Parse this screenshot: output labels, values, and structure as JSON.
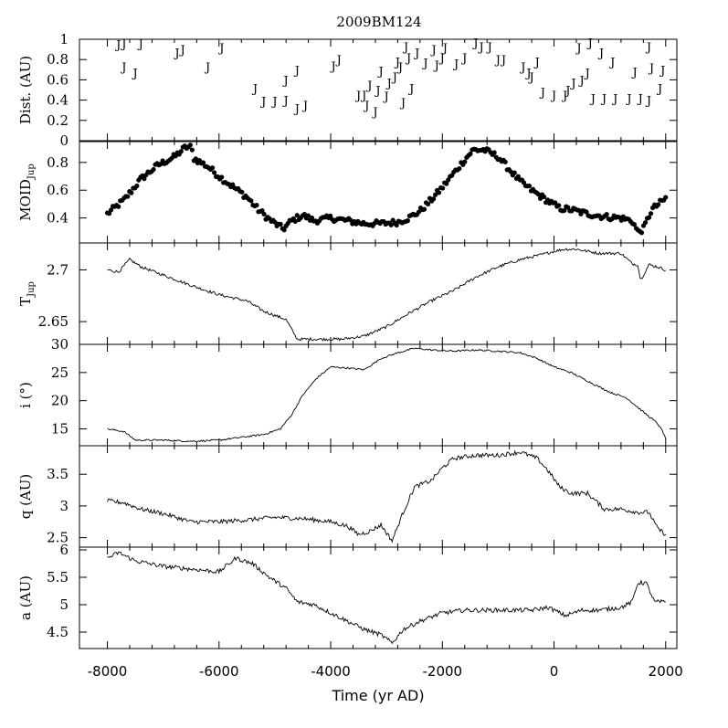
{
  "title": "2009BM124",
  "x_axis": {
    "label": "Time (yr AD)",
    "range": [
      -8500,
      2200
    ],
    "ticks": [
      "-8000",
      "-6000",
      "-4000",
      "-2000",
      "0",
      "2000"
    ]
  },
  "chart_data": [
    {
      "id": "dist",
      "type": "scatter",
      "marker": "J",
      "ylabel": "Dist. (AU)",
      "ylim": [
        0,
        1
      ],
      "yticks": [
        "0",
        "0.2",
        "0.4",
        "0.6",
        "0.8",
        "1"
      ],
      "points": [
        [
          -7800,
          0.95
        ],
        [
          -7700,
          0.96
        ],
        [
          -7700,
          0.73
        ],
        [
          -7500,
          0.67
        ],
        [
          -7400,
          0.96
        ],
        [
          -6750,
          0.87
        ],
        [
          -6650,
          0.9
        ],
        [
          -6200,
          0.73
        ],
        [
          -5950,
          0.92
        ],
        [
          -5350,
          0.52
        ],
        [
          -5200,
          0.39
        ],
        [
          -5000,
          0.39
        ],
        [
          -4800,
          0.4
        ],
        [
          -4800,
          0.6
        ],
        [
          -4600,
          0.32
        ],
        [
          -4600,
          0.7
        ],
        [
          -4450,
          0.35
        ],
        [
          -3950,
          0.74
        ],
        [
          -3850,
          0.8
        ],
        [
          -3500,
          0.45
        ],
        [
          -3400,
          0.45
        ],
        [
          -3350,
          0.35
        ],
        [
          -3300,
          0.55
        ],
        [
          -3200,
          0.29
        ],
        [
          -3150,
          0.5
        ],
        [
          -3100,
          0.69
        ],
        [
          -3000,
          0.44
        ],
        [
          -2950,
          0.57
        ],
        [
          -2850,
          0.63
        ],
        [
          -2800,
          0.78
        ],
        [
          -2750,
          0.73
        ],
        [
          -2700,
          0.38
        ],
        [
          -2650,
          0.93
        ],
        [
          -2600,
          0.82
        ],
        [
          -2550,
          0.52
        ],
        [
          -2450,
          0.87
        ],
        [
          -2300,
          0.77
        ],
        [
          -2150,
          0.9
        ],
        [
          -2100,
          0.75
        ],
        [
          -2000,
          0.82
        ],
        [
          -1950,
          0.92
        ],
        [
          -1750,
          0.76
        ],
        [
          -1600,
          0.82
        ],
        [
          -1400,
          0.97
        ],
        [
          -1300,
          0.93
        ],
        [
          -1150,
          0.93
        ],
        [
          -1000,
          0.8
        ],
        [
          -900,
          0.8
        ],
        [
          -550,
          0.73
        ],
        [
          -450,
          0.67
        ],
        [
          -400,
          0.63
        ],
        [
          -300,
          0.78
        ],
        [
          -200,
          0.48
        ],
        [
          0,
          0.45
        ],
        [
          200,
          0.45
        ],
        [
          250,
          0.5
        ],
        [
          350,
          0.57
        ],
        [
          450,
          0.92
        ],
        [
          500,
          0.6
        ],
        [
          600,
          0.67
        ],
        [
          650,
          0.97
        ],
        [
          700,
          0.42
        ],
        [
          850,
          0.87
        ],
        [
          900,
          0.42
        ],
        [
          1050,
          0.78
        ],
        [
          1100,
          0.42
        ],
        [
          1350,
          0.42
        ],
        [
          1450,
          0.68
        ],
        [
          1550,
          0.42
        ],
        [
          1700,
          0.93
        ],
        [
          1700,
          0.4
        ],
        [
          1750,
          0.72
        ],
        [
          1900,
          0.52
        ],
        [
          1950,
          0.7
        ]
      ]
    },
    {
      "id": "moid",
      "type": "scatter",
      "marker": "dot",
      "ylabel": "MOID",
      "ylabel_sub": "Jup",
      "ylim": [
        0.22,
        0.95
      ],
      "yticks": [
        "0.4",
        "0.6",
        "0.8"
      ],
      "curve": [
        [
          -8000,
          0.43
        ],
        [
          -7700,
          0.53
        ],
        [
          -7400,
          0.68
        ],
        [
          -7100,
          0.78
        ],
        [
          -6800,
          0.84
        ],
        [
          -6600,
          0.91
        ],
        [
          -6500,
          0.91
        ],
        [
          -6450,
          0.83
        ],
        [
          -6200,
          0.77
        ],
        [
          -6000,
          0.7
        ],
        [
          -5700,
          0.61
        ],
        [
          -5500,
          0.55
        ],
        [
          -5300,
          0.46
        ],
        [
          -5100,
          0.39
        ],
        [
          -4850,
          0.32
        ],
        [
          -4700,
          0.38
        ],
        [
          -4500,
          0.42
        ],
        [
          -4300,
          0.38
        ],
        [
          -4000,
          0.4
        ],
        [
          -3700,
          0.38
        ],
        [
          -3400,
          0.36
        ],
        [
          -3100,
          0.36
        ],
        [
          -2800,
          0.37
        ],
        [
          -2600,
          0.4
        ],
        [
          -2400,
          0.45
        ],
        [
          -2200,
          0.53
        ],
        [
          -2000,
          0.62
        ],
        [
          -1800,
          0.72
        ],
        [
          -1600,
          0.82
        ],
        [
          -1450,
          0.89
        ],
        [
          -1250,
          0.89
        ],
        [
          -1000,
          0.84
        ],
        [
          -800,
          0.75
        ],
        [
          -600,
          0.66
        ],
        [
          -400,
          0.6
        ],
        [
          -250,
          0.56
        ],
        [
          -100,
          0.52
        ],
        [
          100,
          0.47
        ],
        [
          300,
          0.46
        ],
        [
          600,
          0.43
        ],
        [
          900,
          0.41
        ],
        [
          1200,
          0.4
        ],
        [
          1400,
          0.38
        ],
        [
          1500,
          0.3
        ],
        [
          1600,
          0.32
        ],
        [
          1750,
          0.46
        ],
        [
          2000,
          0.54
        ]
      ],
      "spread": 0.022
    },
    {
      "id": "tjup",
      "type": "line",
      "ylabel": "T",
      "ylabel_sub": "Jup",
      "ylim": [
        2.628,
        2.726
      ],
      "yticks": [
        "2.65",
        "2.7"
      ],
      "curve": [
        [
          -8000,
          2.7
        ],
        [
          -7800,
          2.698
        ],
        [
          -7600,
          2.71
        ],
        [
          -7400,
          2.703
        ],
        [
          -7000,
          2.695
        ],
        [
          -6500,
          2.685
        ],
        [
          -6000,
          2.676
        ],
        [
          -5500,
          2.67
        ],
        [
          -5200,
          2.66
        ],
        [
          -4800,
          2.652
        ],
        [
          -4600,
          2.633
        ],
        [
          -4200,
          2.633
        ],
        [
          -3800,
          2.633
        ],
        [
          -3400,
          2.636
        ],
        [
          -3000,
          2.645
        ],
        [
          -2600,
          2.658
        ],
        [
          -2200,
          2.67
        ],
        [
          -1800,
          2.68
        ],
        [
          -1400,
          2.693
        ],
        [
          -1000,
          2.703
        ],
        [
          -600,
          2.71
        ],
        [
          -200,
          2.715
        ],
        [
          0,
          2.718
        ],
        [
          200,
          2.72
        ],
        [
          400,
          2.72
        ],
        [
          800,
          2.716
        ],
        [
          1200,
          2.716
        ],
        [
          1400,
          2.706
        ],
        [
          1500,
          2.705
        ],
        [
          1550,
          2.69
        ],
        [
          1600,
          2.695
        ],
        [
          1700,
          2.705
        ],
        [
          1850,
          2.703
        ],
        [
          2000,
          2.7
        ]
      ],
      "noise": 0.0014
    },
    {
      "id": "incl",
      "type": "line",
      "ylabel": "i (°)",
      "ylim": [
        12,
        30
      ],
      "yticks": [
        "15",
        "20",
        "25",
        "30"
      ],
      "curve": [
        [
          -8000,
          15.0
        ],
        [
          -7700,
          14.5
        ],
        [
          -7500,
          13.0
        ],
        [
          -7000,
          13.0
        ],
        [
          -6500,
          12.8
        ],
        [
          -6000,
          13.0
        ],
        [
          -5600,
          13.5
        ],
        [
          -5200,
          14.0
        ],
        [
          -4900,
          15.0
        ],
        [
          -4700,
          17.5
        ],
        [
          -4500,
          21.0
        ],
        [
          -4250,
          24.0
        ],
        [
          -4000,
          26.0
        ],
        [
          -3700,
          25.8
        ],
        [
          -3400,
          25.5
        ],
        [
          -3100,
          27.5
        ],
        [
          -2800,
          28.5
        ],
        [
          -2500,
          29.3
        ],
        [
          -2200,
          29.0
        ],
        [
          -1800,
          28.8
        ],
        [
          -1400,
          29.0
        ],
        [
          -1000,
          28.8
        ],
        [
          -600,
          28.5
        ],
        [
          -300,
          27.5
        ],
        [
          0,
          26.0
        ],
        [
          300,
          25.0
        ],
        [
          700,
          23.0
        ],
        [
          1000,
          21.5
        ],
        [
          1300,
          20.5
        ],
        [
          1600,
          18.0
        ],
        [
          1850,
          16.0
        ],
        [
          1950,
          14.5
        ],
        [
          2000,
          13.2
        ]
      ],
      "noise": 0.15
    },
    {
      "id": "q",
      "type": "line",
      "ylabel": "q (AU)",
      "ylim": [
        2.35,
        3.95
      ],
      "yticks": [
        "2.5",
        "3",
        "3.5"
      ],
      "curve": [
        [
          -8000,
          3.08
        ],
        [
          -7700,
          3.05
        ],
        [
          -7400,
          2.95
        ],
        [
          -7000,
          2.88
        ],
        [
          -6500,
          2.75
        ],
        [
          -6000,
          2.75
        ],
        [
          -5500,
          2.78
        ],
        [
          -5000,
          2.82
        ],
        [
          -4500,
          2.8
        ],
        [
          -4000,
          2.75
        ],
        [
          -3700,
          2.68
        ],
        [
          -3500,
          2.55
        ],
        [
          -3300,
          2.6
        ],
        [
          -3100,
          2.7
        ],
        [
          -2900,
          2.45
        ],
        [
          -2700,
          2.9
        ],
        [
          -2500,
          3.3
        ],
        [
          -2200,
          3.4
        ],
        [
          -2000,
          3.6
        ],
        [
          -1800,
          3.75
        ],
        [
          -1400,
          3.8
        ],
        [
          -1000,
          3.8
        ],
        [
          -600,
          3.85
        ],
        [
          -300,
          3.75
        ],
        [
          -100,
          3.55
        ],
        [
          100,
          3.3
        ],
        [
          300,
          3.2
        ],
        [
          600,
          3.2
        ],
        [
          900,
          2.95
        ],
        [
          1200,
          2.95
        ],
        [
          1500,
          2.9
        ],
        [
          1700,
          2.9
        ],
        [
          1850,
          2.65
        ],
        [
          2000,
          2.55
        ]
      ],
      "noise": 0.035
    },
    {
      "id": "a",
      "type": "line",
      "ylabel": "a (AU)",
      "ylim": [
        4.2,
        6.05
      ],
      "yticks": [
        "4.5",
        "5",
        "5.5",
        "6"
      ],
      "curve": [
        [
          -8000,
          5.85
        ],
        [
          -7800,
          5.95
        ],
        [
          -7500,
          5.8
        ],
        [
          -7000,
          5.7
        ],
        [
          -6500,
          5.65
        ],
        [
          -6000,
          5.6
        ],
        [
          -5700,
          5.85
        ],
        [
          -5400,
          5.75
        ],
        [
          -5100,
          5.5
        ],
        [
          -4800,
          5.3
        ],
        [
          -4600,
          5.05
        ],
        [
          -4300,
          5.0
        ],
        [
          -4000,
          4.85
        ],
        [
          -3700,
          4.7
        ],
        [
          -3400,
          4.55
        ],
        [
          -3100,
          4.45
        ],
        [
          -2900,
          4.3
        ],
        [
          -2700,
          4.55
        ],
        [
          -2400,
          4.7
        ],
        [
          -2000,
          4.85
        ],
        [
          -1600,
          4.9
        ],
        [
          -1200,
          4.9
        ],
        [
          -800,
          4.9
        ],
        [
          -400,
          4.9
        ],
        [
          -100,
          4.95
        ],
        [
          200,
          4.8
        ],
        [
          500,
          4.9
        ],
        [
          800,
          4.9
        ],
        [
          1200,
          4.95
        ],
        [
          1400,
          5.05
        ],
        [
          1500,
          5.4
        ],
        [
          1650,
          5.4
        ],
        [
          1800,
          5.05
        ],
        [
          2000,
          5.05
        ]
      ],
      "noise": 0.04
    }
  ]
}
